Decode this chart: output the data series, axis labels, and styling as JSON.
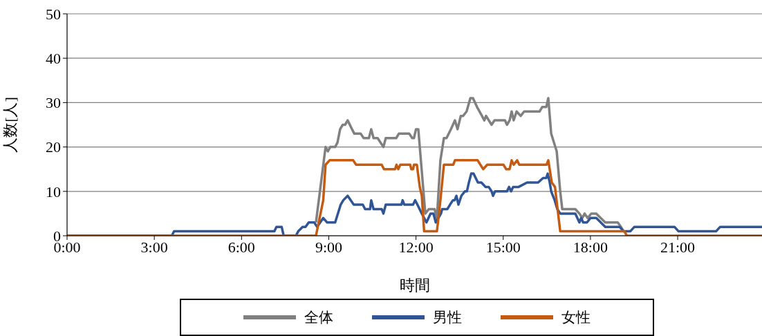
{
  "chart_data": {
    "type": "line",
    "xlabel": "時間",
    "ylabel": "人数[人]",
    "xlim": [
      0,
      23.9
    ],
    "xticks": [
      {
        "value": 0,
        "label": "0:00"
      },
      {
        "value": 3,
        "label": "3:00"
      },
      {
        "value": 6,
        "label": "6:00"
      },
      {
        "value": 9,
        "label": "9:00"
      },
      {
        "value": 12,
        "label": "12:00"
      },
      {
        "value": 15,
        "label": "15:00"
      },
      {
        "value": 18,
        "label": "18:00"
      },
      {
        "value": 21,
        "label": "21:00"
      }
    ],
    "ylim": [
      0,
      50
    ],
    "yticks": [
      0,
      10,
      20,
      30,
      40,
      50
    ],
    "grid": "y",
    "legend": "bottom",
    "marker": "none",
    "line_style": "solid",
    "series": [
      {
        "name": "全体",
        "color": "#808080",
        "x": [
          8.56,
          8.89,
          8.97,
          9.05,
          9.22,
          9.3,
          9.39,
          9.48,
          9.56,
          9.65,
          9.8,
          9.88,
          10.1,
          10.2,
          10.38,
          10.46,
          10.54,
          10.68,
          10.88,
          10.96,
          11.32,
          11.41,
          11.77,
          11.87,
          11.93,
          12.0,
          12.08,
          12.32,
          12.44,
          12.64,
          12.72,
          12.84,
          12.96,
          13.05,
          13.2,
          13.34,
          13.43,
          13.54,
          13.62,
          13.74,
          13.87,
          13.96,
          14.1,
          14.27,
          14.35,
          14.41,
          14.6,
          14.7,
          15.06,
          15.13,
          15.22,
          15.29,
          15.36,
          15.46,
          15.6,
          15.72,
          16.25,
          16.34,
          16.48,
          16.55,
          16.65,
          16.84,
          16.96,
          17.03,
          17.48,
          17.62,
          17.72,
          17.8,
          17.9,
          18.03,
          18.2,
          18.51,
          18.94,
          19.05,
          19.14
        ],
        "values": [
          3,
          20,
          19,
          20,
          20,
          21,
          24,
          25,
          25,
          26,
          24,
          23,
          23,
          22,
          22,
          24,
          22,
          22,
          20,
          22,
          22,
          23,
          23,
          22,
          22,
          24,
          24,
          5,
          6,
          6,
          4,
          17,
          22,
          22,
          24,
          26,
          24,
          27,
          27,
          28,
          31,
          31,
          29,
          27,
          26,
          27,
          25,
          26,
          26,
          25,
          26,
          28,
          26,
          28,
          27,
          28,
          28,
          29,
          29,
          31,
          23,
          19,
          10,
          6,
          6,
          5,
          4,
          5,
          4,
          5,
          5,
          3,
          3,
          2,
          1
        ]
      },
      {
        "name": "男性",
        "color": "#2f5597",
        "x": [
          0,
          3.6,
          3.68,
          7.13,
          7.2,
          7.38,
          7.45,
          7.87,
          7.95,
          8.1,
          8.2,
          8.31,
          8.5,
          8.6,
          8.81,
          8.94,
          9.22,
          9.41,
          9.5,
          9.65,
          9.86,
          10.17,
          10.25,
          10.42,
          10.46,
          10.54,
          10.82,
          10.88,
          10.96,
          11.5,
          11.54,
          11.6,
          11.9,
          11.97,
          12.05,
          12.2,
          12.36,
          12.5,
          12.6,
          12.68,
          12.86,
          12.9,
          13.08,
          13.17,
          13.27,
          13.33,
          13.39,
          13.46,
          13.56,
          13.68,
          13.75,
          13.82,
          13.9,
          13.98,
          14.13,
          14.25,
          14.39,
          14.5,
          14.6,
          14.65,
          14.72,
          15.13,
          15.2,
          15.27,
          15.34,
          15.53,
          15.82,
          16.2,
          16.37,
          16.48,
          16.53,
          16.6,
          16.65,
          16.77,
          16.86,
          16.96,
          17.48,
          17.62,
          17.68,
          17.75,
          17.88,
          18.0,
          18.2,
          18.51,
          19.0,
          19.14,
          19.37,
          19.51,
          20.89,
          21.03,
          22.32,
          22.46,
          23.9
        ],
        "values": [
          0,
          0,
          1,
          1,
          2,
          2,
          0,
          0,
          1,
          2,
          2,
          3,
          3,
          2,
          4,
          3,
          3,
          7,
          8,
          9,
          7,
          7,
          6,
          6,
          8,
          6,
          6,
          5,
          7,
          7,
          8,
          7,
          7,
          8,
          7,
          5,
          3,
          5,
          5,
          3,
          5,
          6,
          6,
          7,
          8,
          8,
          9,
          7,
          9,
          10,
          10,
          12,
          14,
          14,
          12,
          12,
          11,
          11,
          10,
          9,
          10,
          10,
          11,
          10,
          11,
          11,
          12,
          12,
          13,
          13,
          14,
          12,
          10,
          8,
          6,
          5,
          5,
          3,
          4,
          3,
          3,
          4,
          4,
          2,
          2,
          1,
          1,
          2,
          2,
          1,
          1,
          2,
          2
        ]
      },
      {
        "name": "女性",
        "color": "#c55a11",
        "x": [
          0,
          8.56,
          8.81,
          8.89,
          9.03,
          9.84,
          9.94,
          10.82,
          10.9,
          11.28,
          11.33,
          11.39,
          11.46,
          11.8,
          11.84,
          11.9,
          11.93,
          12.03,
          12.13,
          12.2,
          12.28,
          12.72,
          12.84,
          12.96,
          13.28,
          13.34,
          14.12,
          14.31,
          14.45,
          15.01,
          15.1,
          15.22,
          15.29,
          15.36,
          15.48,
          15.55,
          16.49,
          16.55,
          16.67,
          16.78,
          16.96,
          19.17,
          19.25,
          23.9
        ],
        "values": [
          0,
          0,
          8,
          16,
          17,
          17,
          16,
          16,
          15,
          15,
          16,
          15,
          16,
          16,
          15,
          15,
          16,
          16,
          11,
          9,
          1,
          1,
          8,
          16,
          16,
          17,
          17,
          15,
          16,
          16,
          15,
          15,
          17,
          16,
          17,
          16,
          16,
          17,
          12,
          11,
          1,
          1,
          0,
          0
        ]
      }
    ]
  }
}
